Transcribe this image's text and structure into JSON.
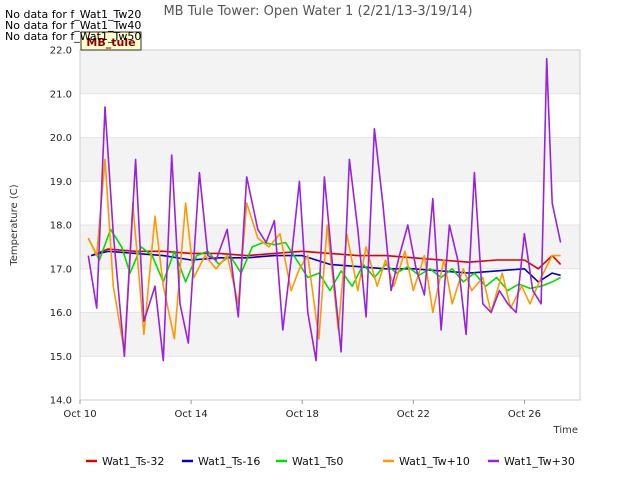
{
  "chart_data": {
    "type": "line",
    "title": "MB Tule Tower: Open Water 1 (2/21/13-3/19/14)",
    "xlabel": "Time",
    "ylabel": "Temperature (C)",
    "xlim": [
      "Oct 10",
      "Oct 28"
    ],
    "ylim": [
      14.0,
      22.0
    ],
    "x_ticks": [
      "Oct 10",
      "Oct 14",
      "Oct 18",
      "Oct 22",
      "Oct 26"
    ],
    "y_ticks": [
      "14.0",
      "15.0",
      "16.0",
      "17.0",
      "18.0",
      "19.0",
      "20.0",
      "21.0",
      "22.0"
    ],
    "grid": "horizontal bands",
    "legend_position": "bottom",
    "no_data_notes": [
      "No data for f_Wat1_Tw20",
      "No data for f_Wat1_Tw40",
      "No data for f_Wat1_Tw50"
    ],
    "badge": "MB_tule",
    "series": [
      {
        "name": "Wat1_Ts-32",
        "color": "#dd0000",
        "x": [
          10.4,
          11,
          12,
          13,
          14,
          15,
          16,
          17,
          18,
          19,
          20,
          21,
          22,
          23,
          24,
          25,
          26,
          26.5,
          27,
          27.3
        ],
        "values": [
          17.3,
          17.45,
          17.4,
          17.4,
          17.35,
          17.35,
          17.3,
          17.35,
          17.4,
          17.35,
          17.3,
          17.3,
          17.25,
          17.2,
          17.15,
          17.2,
          17.2,
          17.0,
          17.3,
          17.1
        ]
      },
      {
        "name": "Wat1_Ts-16",
        "color": "#0000cc",
        "x": [
          10.4,
          11,
          12,
          13,
          14,
          15,
          16,
          17,
          18,
          19,
          20,
          21,
          22,
          23,
          24,
          25,
          26,
          26.5,
          27,
          27.3
        ],
        "values": [
          17.3,
          17.4,
          17.35,
          17.3,
          17.2,
          17.25,
          17.25,
          17.3,
          17.3,
          17.1,
          17.05,
          17.0,
          17.0,
          16.95,
          16.9,
          16.95,
          17.0,
          16.7,
          16.9,
          16.85
        ]
      },
      {
        "name": "Wat1_Ts0",
        "color": "#00dd00",
        "x": [
          10.3,
          10.7,
          11.1,
          11.5,
          11.8,
          12.2,
          12.6,
          13.0,
          13.4,
          13.8,
          14.2,
          14.6,
          15.0,
          15.4,
          15.8,
          16.2,
          16.6,
          17.0,
          17.4,
          17.8,
          18.2,
          18.6,
          19.0,
          19.4,
          19.8,
          20.2,
          20.6,
          21.0,
          21.4,
          21.8,
          22.2,
          22.6,
          23.0,
          23.4,
          23.8,
          24.2,
          24.6,
          25.0,
          25.4,
          25.8,
          26.2,
          26.6,
          27.0,
          27.3
        ],
        "values": [
          17.7,
          17.2,
          17.9,
          17.5,
          16.9,
          17.5,
          17.3,
          16.7,
          17.4,
          16.7,
          17.3,
          17.4,
          17.1,
          17.3,
          16.9,
          17.5,
          17.6,
          17.55,
          17.6,
          17.2,
          16.8,
          16.9,
          16.5,
          16.95,
          16.6,
          17.1,
          16.8,
          17.1,
          16.9,
          17.05,
          16.85,
          17.0,
          16.8,
          17.0,
          16.7,
          16.9,
          16.6,
          16.8,
          16.5,
          16.65,
          16.55,
          16.6,
          16.7,
          16.8
        ]
      },
      {
        "name": "Wat1_Tw+10",
        "color": "#ff9900",
        "x": [
          10.3,
          10.6,
          10.9,
          11.2,
          11.6,
          11.9,
          12.3,
          12.7,
          13.0,
          13.4,
          13.8,
          14.1,
          14.5,
          14.9,
          15.3,
          15.7,
          16.0,
          16.4,
          16.8,
          17.2,
          17.6,
          17.9,
          18.2,
          18.6,
          18.9,
          19.3,
          19.6,
          20.0,
          20.3,
          20.7,
          21.0,
          21.3,
          21.7,
          22.0,
          22.4,
          22.7,
          23.1,
          23.4,
          23.8,
          24.1,
          24.5,
          24.8,
          25.2,
          25.5,
          25.9,
          26.2,
          26.6,
          27.0,
          27.3
        ],
        "values": [
          17.7,
          17.3,
          19.5,
          16.6,
          15.1,
          18.5,
          15.5,
          18.2,
          16.6,
          15.4,
          18.5,
          16.8,
          17.3,
          17.0,
          17.3,
          16.2,
          18.5,
          17.7,
          17.5,
          17.8,
          16.5,
          17.0,
          17.3,
          15.4,
          18.0,
          15.6,
          17.8,
          16.5,
          17.5,
          16.6,
          17.2,
          16.6,
          17.4,
          16.5,
          17.3,
          16.0,
          17.2,
          16.2,
          17.0,
          16.5,
          16.8,
          16.0,
          16.9,
          16.1,
          16.6,
          16.2,
          16.8,
          17.3,
          17.3
        ]
      },
      {
        "name": "Wat1_Tw+30",
        "color": "#9922dd",
        "x": [
          10.3,
          10.6,
          10.9,
          11.2,
          11.6,
          12.0,
          12.3,
          12.7,
          13.0,
          13.3,
          13.6,
          13.9,
          14.3,
          14.6,
          14.9,
          15.3,
          15.7,
          16.0,
          16.4,
          16.7,
          17.0,
          17.3,
          17.6,
          17.9,
          18.2,
          18.5,
          18.8,
          19.1,
          19.4,
          19.7,
          20.0,
          20.3,
          20.6,
          20.9,
          21.2,
          21.5,
          21.8,
          22.1,
          22.4,
          22.7,
          23.0,
          23.3,
          23.6,
          23.9,
          24.2,
          24.5,
          24.8,
          25.1,
          25.4,
          25.7,
          26.0,
          26.3,
          26.6,
          26.8,
          27.0,
          27.3
        ],
        "values": [
          17.3,
          16.1,
          20.7,
          17.8,
          15.0,
          19.5,
          15.8,
          16.6,
          14.9,
          19.6,
          16.2,
          15.3,
          19.2,
          17.3,
          17.2,
          17.9,
          15.9,
          19.1,
          17.9,
          17.6,
          18.1,
          15.6,
          17.2,
          19.0,
          16.0,
          14.9,
          19.1,
          17.0,
          15.1,
          19.5,
          17.9,
          15.9,
          20.2,
          18.5,
          16.5,
          17.3,
          18.0,
          17.0,
          16.4,
          18.6,
          15.6,
          18.0,
          17.2,
          15.5,
          19.2,
          16.2,
          16.0,
          16.5,
          16.2,
          16.0,
          17.8,
          16.5,
          16.2,
          21.8,
          18.5,
          17.6
        ]
      }
    ]
  }
}
